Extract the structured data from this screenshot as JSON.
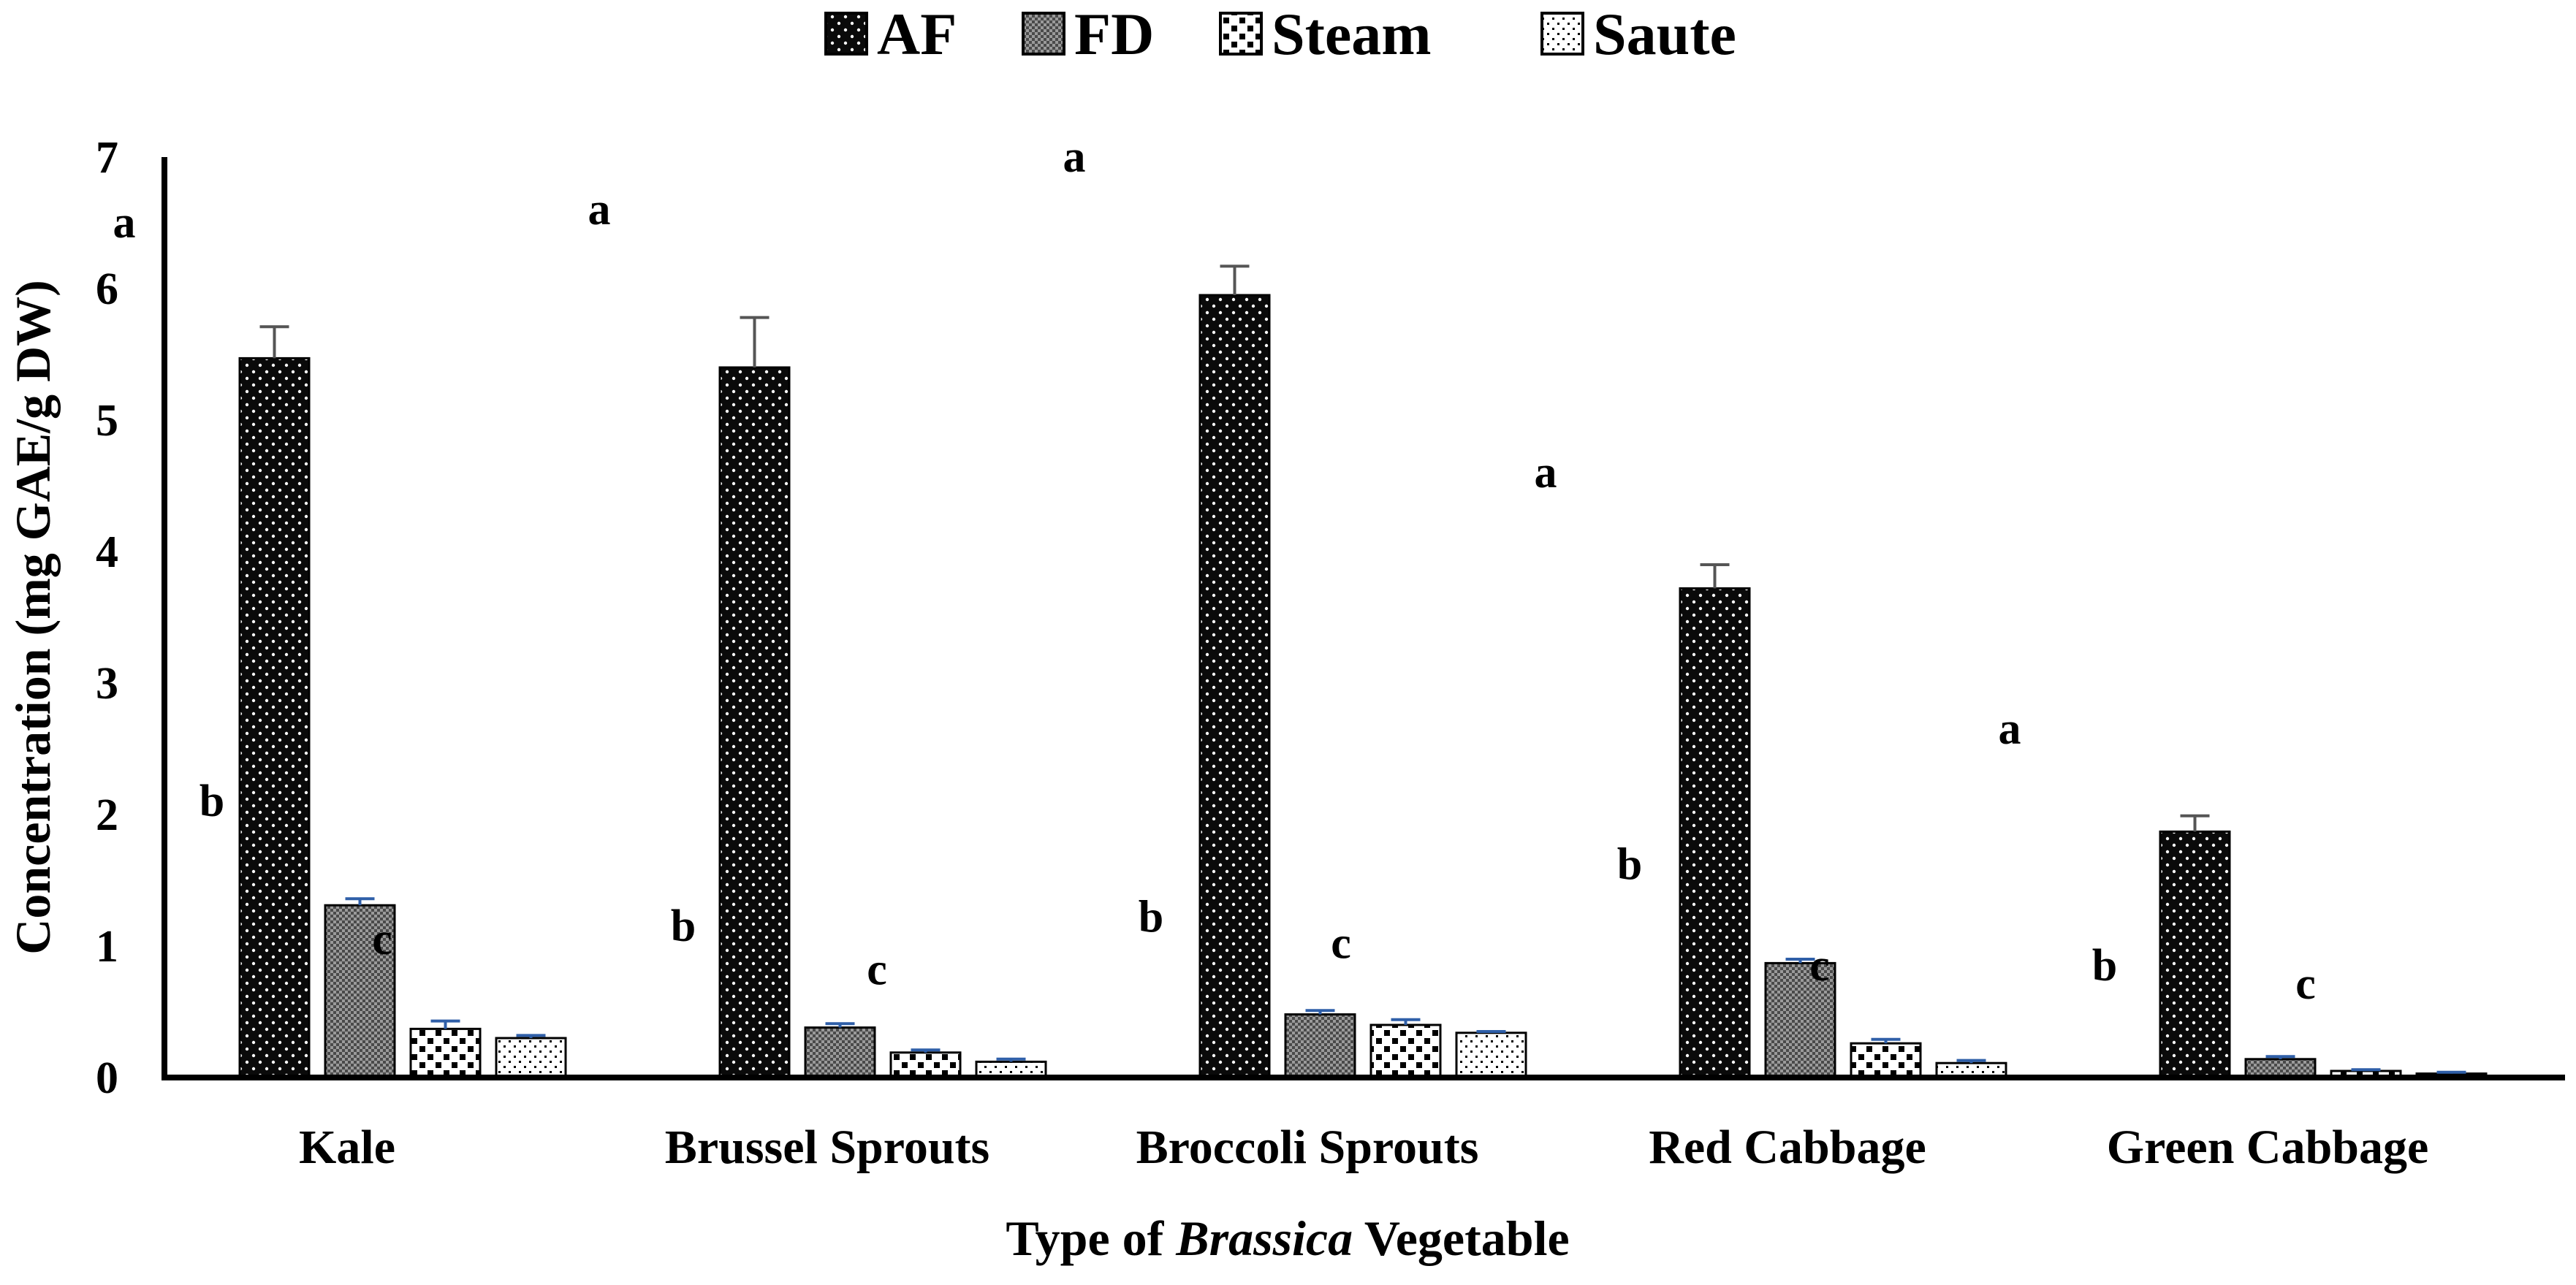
{
  "chart_data": {
    "type": "bar",
    "categories": [
      "Kale",
      "Brussel Sprouts",
      "Broccoli Sprouts",
      "Red Cabbage",
      "Green Cabbage"
    ],
    "series": [
      {
        "name": "AF",
        "values": [
          5.47,
          5.4,
          5.95,
          3.72,
          1.87
        ],
        "errors": [
          0.24,
          0.38,
          0.22,
          0.18,
          0.12
        ],
        "pattern": "dense-dark"
      },
      {
        "name": "FD",
        "values": [
          1.31,
          0.38,
          0.48,
          0.87,
          0.14
        ],
        "errors": [
          0.05,
          0.03,
          0.03,
          0.03,
          0.02
        ],
        "pattern": "fine-gray"
      },
      {
        "name": "Steam",
        "values": [
          0.37,
          0.19,
          0.4,
          0.26,
          0.05
        ],
        "errors": [
          0.06,
          0.02,
          0.04,
          0.03,
          0.01
        ],
        "pattern": "coarse-dots"
      },
      {
        "name": "Saute",
        "values": [
          0.3,
          0.12,
          0.34,
          0.11,
          0.03
        ],
        "errors": [
          0.02,
          0.02,
          0.01,
          0.02,
          0.01
        ],
        "pattern": "sparse-dots"
      }
    ],
    "xlabel_pre": "Type of ",
    "xlabel_italic": "Brassica",
    "xlabel_post": " Vegetable",
    "ylabel": "Concentration (mg GAE/g DW)",
    "ylim": [
      0,
      7
    ],
    "yticks": [
      "0",
      "1",
      "2",
      "3",
      "4",
      "5",
      "6",
      "7"
    ],
    "legend_position": "top-center",
    "grid": false,
    "significance_labels": [
      {
        "text": "a",
        "category": 0,
        "value": 6.5
      },
      {
        "text": "b",
        "category": 0,
        "value": 2.1
      },
      {
        "text": "c",
        "category": 0,
        "value": 1.05
      },
      {
        "text": "a",
        "category": 1,
        "value": 6.6
      },
      {
        "text": "b",
        "category": 1,
        "value": 1.15
      },
      {
        "text": "c",
        "category": 1,
        "value": 0.82
      },
      {
        "text": "a",
        "category": 2,
        "value": 7.0
      },
      {
        "text": "b",
        "category": 2,
        "value": 1.22
      },
      {
        "text": "c",
        "category": 2,
        "value": 1.02
      },
      {
        "text": "a",
        "category": 3,
        "value": 4.6
      },
      {
        "text": "b",
        "category": 3,
        "value": 1.62
      },
      {
        "text": "c",
        "category": 3,
        "value": 0.85
      },
      {
        "text": "a",
        "category": 4,
        "value": 2.65
      },
      {
        "text": "b",
        "category": 4,
        "value": 0.85
      },
      {
        "text": "c",
        "category": 4,
        "value": 0.71
      }
    ]
  }
}
